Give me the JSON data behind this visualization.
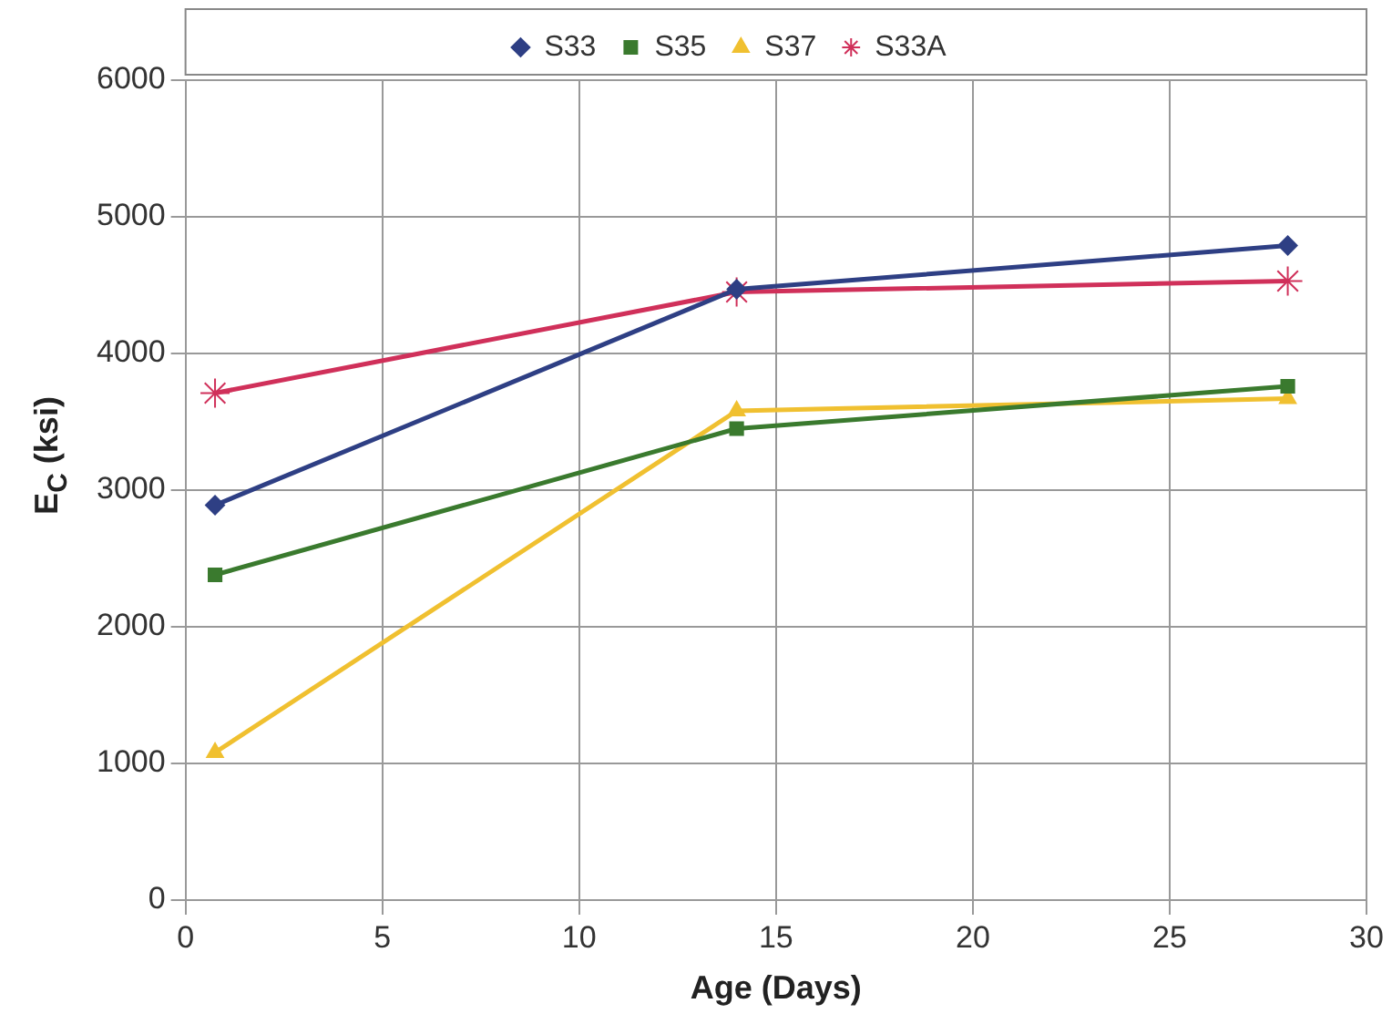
{
  "chart_data": {
    "type": "line",
    "xlabel": "Age (Days)",
    "ylabel": "E$_{C}$ (ksi)",
    "xlim": [
      0,
      30
    ],
    "xticks": [
      0,
      5,
      10,
      15,
      20,
      25,
      30
    ],
    "ylim": [
      0,
      6000
    ],
    "yticks": [
      0,
      1000,
      2000,
      3000,
      4000,
      5000,
      6000
    ],
    "grid": true,
    "legend": "top",
    "series": [
      {
        "name": "S33",
        "color": "#2e3f84",
        "marker": "diamond",
        "x": [
          0.75,
          14,
          28
        ],
        "values": [
          2890,
          4470,
          4790
        ]
      },
      {
        "name": "S35",
        "color": "#3a7a2e",
        "marker": "square",
        "x": [
          0.75,
          14,
          28
        ],
        "values": [
          2380,
          3450,
          3760
        ]
      },
      {
        "name": "S37",
        "color": "#f0c030",
        "marker": "triangle",
        "x": [
          0.75,
          14,
          28
        ],
        "values": [
          1080,
          3580,
          3670
        ]
      },
      {
        "name": "S33A",
        "color": "#d0305a",
        "marker": "cross",
        "x": [
          0.75,
          14,
          28
        ],
        "values": [
          3710,
          4450,
          4530
        ]
      }
    ]
  }
}
